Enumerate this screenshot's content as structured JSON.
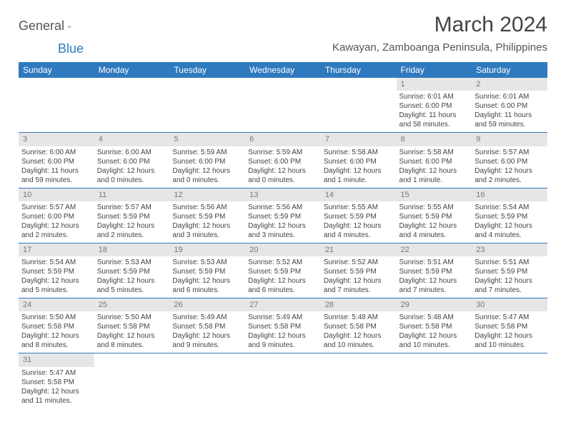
{
  "logo": {
    "general": "General",
    "blue": "Blue"
  },
  "title": "March 2024",
  "location": "Kawayan, Zamboanga Peninsula, Philippines",
  "colors": {
    "header_bg": "#2F7ABF",
    "header_text": "#ffffff",
    "grid_line": "#2F7ABF",
    "daynum_bg": "#e6e6e6"
  },
  "day_headers": [
    "Sunday",
    "Monday",
    "Tuesday",
    "Wednesday",
    "Thursday",
    "Friday",
    "Saturday"
  ],
  "weeks": [
    [
      null,
      null,
      null,
      null,
      null,
      {
        "n": "1",
        "sr": "6:01 AM",
        "ss": "6:00 PM",
        "dl": "11 hours and 58 minutes."
      },
      {
        "n": "2",
        "sr": "6:01 AM",
        "ss": "6:00 PM",
        "dl": "11 hours and 59 minutes."
      }
    ],
    [
      {
        "n": "3",
        "sr": "6:00 AM",
        "ss": "6:00 PM",
        "dl": "11 hours and 59 minutes."
      },
      {
        "n": "4",
        "sr": "6:00 AM",
        "ss": "6:00 PM",
        "dl": "12 hours and 0 minutes."
      },
      {
        "n": "5",
        "sr": "5:59 AM",
        "ss": "6:00 PM",
        "dl": "12 hours and 0 minutes."
      },
      {
        "n": "6",
        "sr": "5:59 AM",
        "ss": "6:00 PM",
        "dl": "12 hours and 0 minutes."
      },
      {
        "n": "7",
        "sr": "5:58 AM",
        "ss": "6:00 PM",
        "dl": "12 hours and 1 minute."
      },
      {
        "n": "8",
        "sr": "5:58 AM",
        "ss": "6:00 PM",
        "dl": "12 hours and 1 minute."
      },
      {
        "n": "9",
        "sr": "5:57 AM",
        "ss": "6:00 PM",
        "dl": "12 hours and 2 minutes."
      }
    ],
    [
      {
        "n": "10",
        "sr": "5:57 AM",
        "ss": "6:00 PM",
        "dl": "12 hours and 2 minutes."
      },
      {
        "n": "11",
        "sr": "5:57 AM",
        "ss": "5:59 PM",
        "dl": "12 hours and 2 minutes."
      },
      {
        "n": "12",
        "sr": "5:56 AM",
        "ss": "5:59 PM",
        "dl": "12 hours and 3 minutes."
      },
      {
        "n": "13",
        "sr": "5:56 AM",
        "ss": "5:59 PM",
        "dl": "12 hours and 3 minutes."
      },
      {
        "n": "14",
        "sr": "5:55 AM",
        "ss": "5:59 PM",
        "dl": "12 hours and 4 minutes."
      },
      {
        "n": "15",
        "sr": "5:55 AM",
        "ss": "5:59 PM",
        "dl": "12 hours and 4 minutes."
      },
      {
        "n": "16",
        "sr": "5:54 AM",
        "ss": "5:59 PM",
        "dl": "12 hours and 4 minutes."
      }
    ],
    [
      {
        "n": "17",
        "sr": "5:54 AM",
        "ss": "5:59 PM",
        "dl": "12 hours and 5 minutes."
      },
      {
        "n": "18",
        "sr": "5:53 AM",
        "ss": "5:59 PM",
        "dl": "12 hours and 5 minutes."
      },
      {
        "n": "19",
        "sr": "5:53 AM",
        "ss": "5:59 PM",
        "dl": "12 hours and 6 minutes."
      },
      {
        "n": "20",
        "sr": "5:52 AM",
        "ss": "5:59 PM",
        "dl": "12 hours and 6 minutes."
      },
      {
        "n": "21",
        "sr": "5:52 AM",
        "ss": "5:59 PM",
        "dl": "12 hours and 7 minutes."
      },
      {
        "n": "22",
        "sr": "5:51 AM",
        "ss": "5:59 PM",
        "dl": "12 hours and 7 minutes."
      },
      {
        "n": "23",
        "sr": "5:51 AM",
        "ss": "5:59 PM",
        "dl": "12 hours and 7 minutes."
      }
    ],
    [
      {
        "n": "24",
        "sr": "5:50 AM",
        "ss": "5:58 PM",
        "dl": "12 hours and 8 minutes."
      },
      {
        "n": "25",
        "sr": "5:50 AM",
        "ss": "5:58 PM",
        "dl": "12 hours and 8 minutes."
      },
      {
        "n": "26",
        "sr": "5:49 AM",
        "ss": "5:58 PM",
        "dl": "12 hours and 9 minutes."
      },
      {
        "n": "27",
        "sr": "5:49 AM",
        "ss": "5:58 PM",
        "dl": "12 hours and 9 minutes."
      },
      {
        "n": "28",
        "sr": "5:48 AM",
        "ss": "5:58 PM",
        "dl": "12 hours and 10 minutes."
      },
      {
        "n": "29",
        "sr": "5:48 AM",
        "ss": "5:58 PM",
        "dl": "12 hours and 10 minutes."
      },
      {
        "n": "30",
        "sr": "5:47 AM",
        "ss": "5:58 PM",
        "dl": "12 hours and 10 minutes."
      }
    ],
    [
      {
        "n": "31",
        "sr": "5:47 AM",
        "ss": "5:58 PM",
        "dl": "12 hours and 11 minutes."
      },
      null,
      null,
      null,
      null,
      null,
      null
    ]
  ],
  "labels": {
    "sunrise": "Sunrise:",
    "sunset": "Sunset:",
    "daylight": "Daylight:"
  }
}
